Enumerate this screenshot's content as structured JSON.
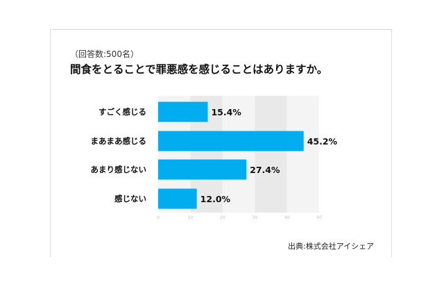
{
  "header": {
    "subtitle": "（回答数:500名）",
    "title": "間食をとることで罪悪感を感じることはありますか。"
  },
  "footer": {
    "source": "出典:株式会社アイシェア"
  },
  "chart_data": {
    "type": "bar",
    "orientation": "horizontal",
    "title": "間食をとることで罪悪感を感じることはありますか。",
    "subtitle": "（回答数:500名）",
    "categories": [
      "すごく感じる",
      "まあまあ感じる",
      "あまり感じない",
      "感じない"
    ],
    "values": [
      15.4,
      45.2,
      27.4,
      12.0
    ],
    "value_labels": [
      "15.4%",
      "45.2%",
      "27.4%",
      "12.0%"
    ],
    "xlim": [
      0,
      50
    ],
    "x_ticks": [
      "0",
      "10",
      "20",
      "30",
      "40",
      "50"
    ],
    "bar_color": "#00aeef",
    "grid_band_colors": [
      "#f4f4f4",
      "#e9e9e9"
    ],
    "grid": true,
    "legend": "none"
  }
}
